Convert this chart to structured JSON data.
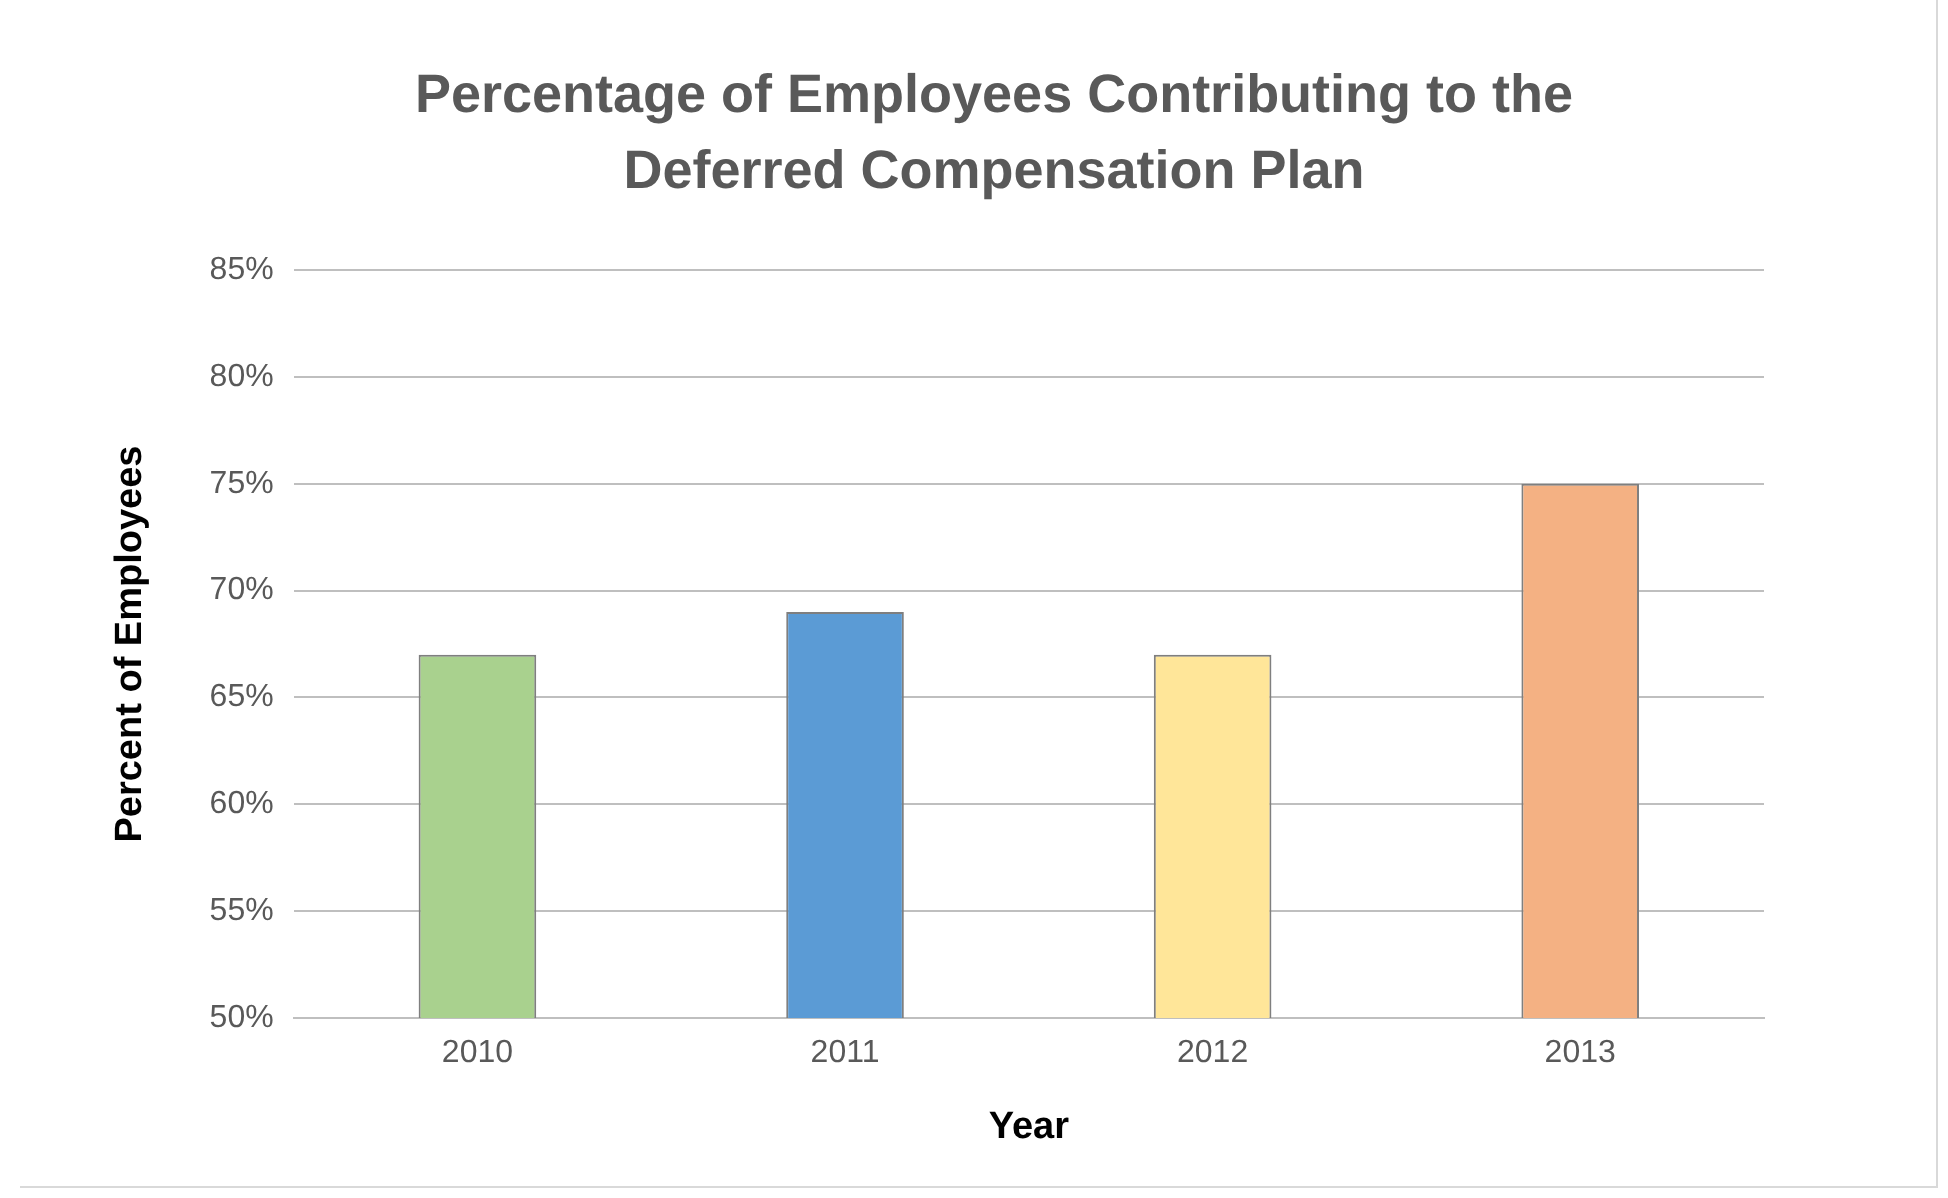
{
  "chart_data": {
    "type": "bar",
    "title": "Percentage of Employees Contributing to the Deferred Compensation Plan",
    "xlabel": "Year",
    "ylabel": "Percent of Employees",
    "categories": [
      "2010",
      "2011",
      "2012",
      "2013"
    ],
    "values": [
      67,
      69,
      67,
      75
    ],
    "colors": [
      "#a9d18e",
      "#5b9bd5",
      "#ffe699",
      "#f4b183"
    ],
    "ylim": [
      50,
      85
    ],
    "yticks": [
      {
        "value": 50,
        "label": "50%"
      },
      {
        "value": 55,
        "label": "55%"
      },
      {
        "value": 60,
        "label": "60%"
      },
      {
        "value": 65,
        "label": "65%"
      },
      {
        "value": 70,
        "label": "70%"
      },
      {
        "value": 75,
        "label": "75%"
      },
      {
        "value": 80,
        "label": "80%"
      },
      {
        "value": 85,
        "label": "85%"
      }
    ],
    "grid": "y",
    "legend": false
  }
}
